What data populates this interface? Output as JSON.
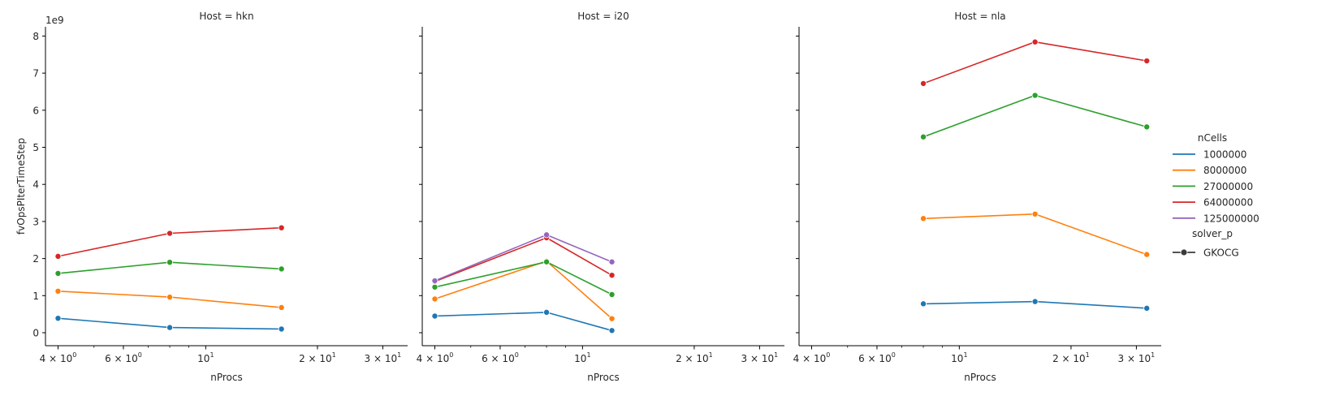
{
  "chart_data": {
    "type": "line",
    "yscale_label": "1e9",
    "ylabel": "fvOpsPIterTimeStep",
    "xlabel": "nProcs",
    "xscale": "log",
    "xlim": [
      3.7,
      35
    ],
    "ylim": [
      -0.35,
      8.25
    ],
    "yticks": [
      0,
      1,
      2,
      3,
      4,
      5,
      6,
      7,
      8
    ],
    "xticks": [
      {
        "value": 4,
        "base": "4",
        "exp": "0"
      },
      {
        "value": 6,
        "base": "6",
        "exp": "0"
      },
      {
        "value": 10,
        "base": "10",
        "exp": "1"
      },
      {
        "value": 20,
        "base": "2",
        "exp": "1"
      },
      {
        "value": 30,
        "base": "3",
        "exp": "1"
      }
    ],
    "legend": {
      "hue_title": "nCells",
      "style_title": "solver_p",
      "style_items": [
        "GKOCG"
      ],
      "placement": "right"
    },
    "series_colors": {
      "1000000": "#1f77b4",
      "8000000": "#ff7f0e",
      "27000000": "#2ca02c",
      "64000000": "#d62728",
      "125000000": "#9467bd"
    },
    "series_names": [
      "1000000",
      "8000000",
      "27000000",
      "64000000",
      "125000000"
    ],
    "panels": [
      {
        "title": "Host = hkn",
        "series": [
          {
            "name": "1000000",
            "x": [
              4,
              8,
              16
            ],
            "y": [
              0.39,
              0.14,
              0.1
            ]
          },
          {
            "name": "8000000",
            "x": [
              4,
              8,
              16
            ],
            "y": [
              1.12,
              0.96,
              0.68
            ]
          },
          {
            "name": "27000000",
            "x": [
              4,
              8,
              16
            ],
            "y": [
              1.6,
              1.9,
              1.72
            ]
          },
          {
            "name": "64000000",
            "x": [
              4,
              8,
              16
            ],
            "y": [
              2.06,
              2.68,
              2.83
            ]
          }
        ]
      },
      {
        "title": "Host = i20",
        "series": [
          {
            "name": "1000000",
            "x": [
              4,
              8,
              12
            ],
            "y": [
              0.45,
              0.55,
              0.06
            ]
          },
          {
            "name": "8000000",
            "x": [
              4,
              8,
              12
            ],
            "y": [
              0.91,
              1.93,
              0.38
            ]
          },
          {
            "name": "27000000",
            "x": [
              4,
              8,
              12
            ],
            "y": [
              1.23,
              1.91,
              1.03
            ]
          },
          {
            "name": "64000000",
            "x": [
              4,
              8,
              12
            ],
            "y": [
              1.38,
              2.56,
              1.55
            ]
          },
          {
            "name": "125000000",
            "x": [
              4,
              8,
              12
            ],
            "y": [
              1.4,
              2.64,
              1.91
            ]
          }
        ]
      },
      {
        "title": "Host = nla",
        "series": [
          {
            "name": "1000000",
            "x": [
              8,
              16,
              32
            ],
            "y": [
              0.78,
              0.84,
              0.66
            ]
          },
          {
            "name": "8000000",
            "x": [
              8,
              16,
              32
            ],
            "y": [
              3.08,
              3.2,
              2.11
            ]
          },
          {
            "name": "27000000",
            "x": [
              8,
              16,
              32
            ],
            "y": [
              5.28,
              6.4,
              5.55
            ]
          },
          {
            "name": "64000000",
            "x": [
              8,
              16,
              32
            ],
            "y": [
              6.72,
              7.84,
              7.33
            ]
          }
        ]
      }
    ]
  }
}
